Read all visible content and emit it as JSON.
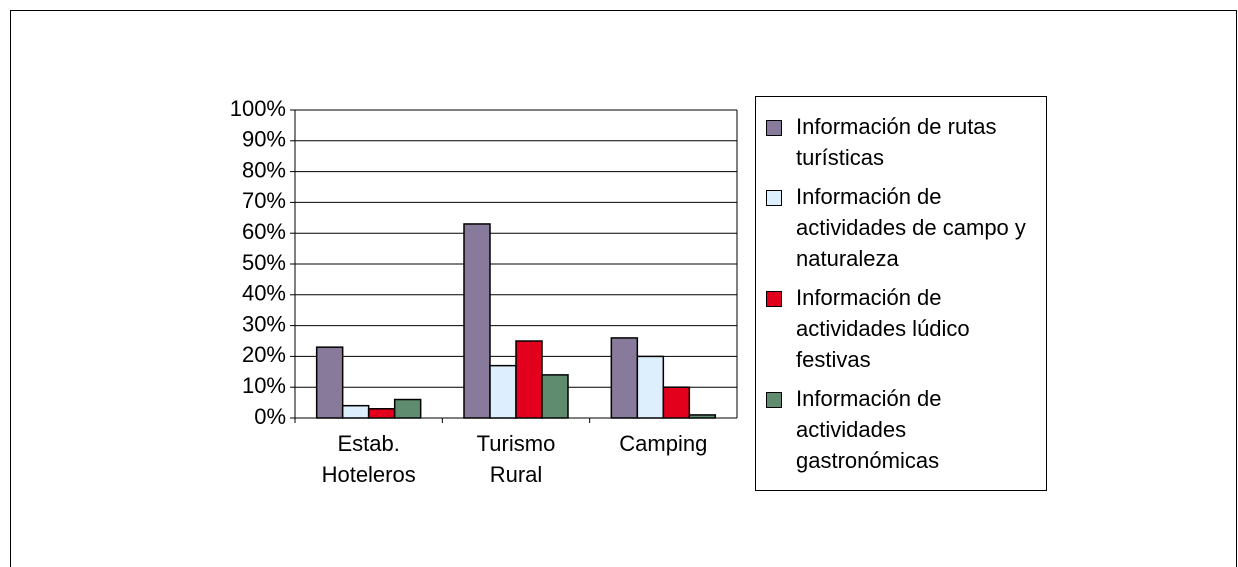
{
  "chart_data": {
    "type": "bar",
    "categories": [
      "Estab. Hoteleros",
      "Turismo Rural",
      "Camping"
    ],
    "series": [
      {
        "name": "Información de rutas turísticas",
        "color": "#877a9a",
        "values": [
          23,
          63,
          26
        ]
      },
      {
        "name": "Información de actividades de campo y naturaleza",
        "color": "#ddeefc",
        "values": [
          4,
          17,
          20
        ]
      },
      {
        "name": "Información de actividades lúdico festivas",
        "color": "#e2001c",
        "values": [
          3,
          25,
          10
        ]
      },
      {
        "name": "Información de actividades gastronómicas",
        "color": "#5f8c6e",
        "values": [
          6,
          14,
          1
        ]
      }
    ],
    "ylim": [
      0,
      100
    ],
    "yticks": [
      {
        "value": 0,
        "label": "0%"
      },
      {
        "value": 10,
        "label": "10%"
      },
      {
        "value": 20,
        "label": "20%"
      },
      {
        "value": 30,
        "label": "30%"
      },
      {
        "value": 40,
        "label": "40%"
      },
      {
        "value": 50,
        "label": "50%"
      },
      {
        "value": 60,
        "label": "60%"
      },
      {
        "value": 70,
        "label": "70%"
      },
      {
        "value": 80,
        "label": "80%"
      },
      {
        "value": 90,
        "label": "90%"
      },
      {
        "value": 100,
        "label": "100%"
      }
    ],
    "grid": true
  }
}
